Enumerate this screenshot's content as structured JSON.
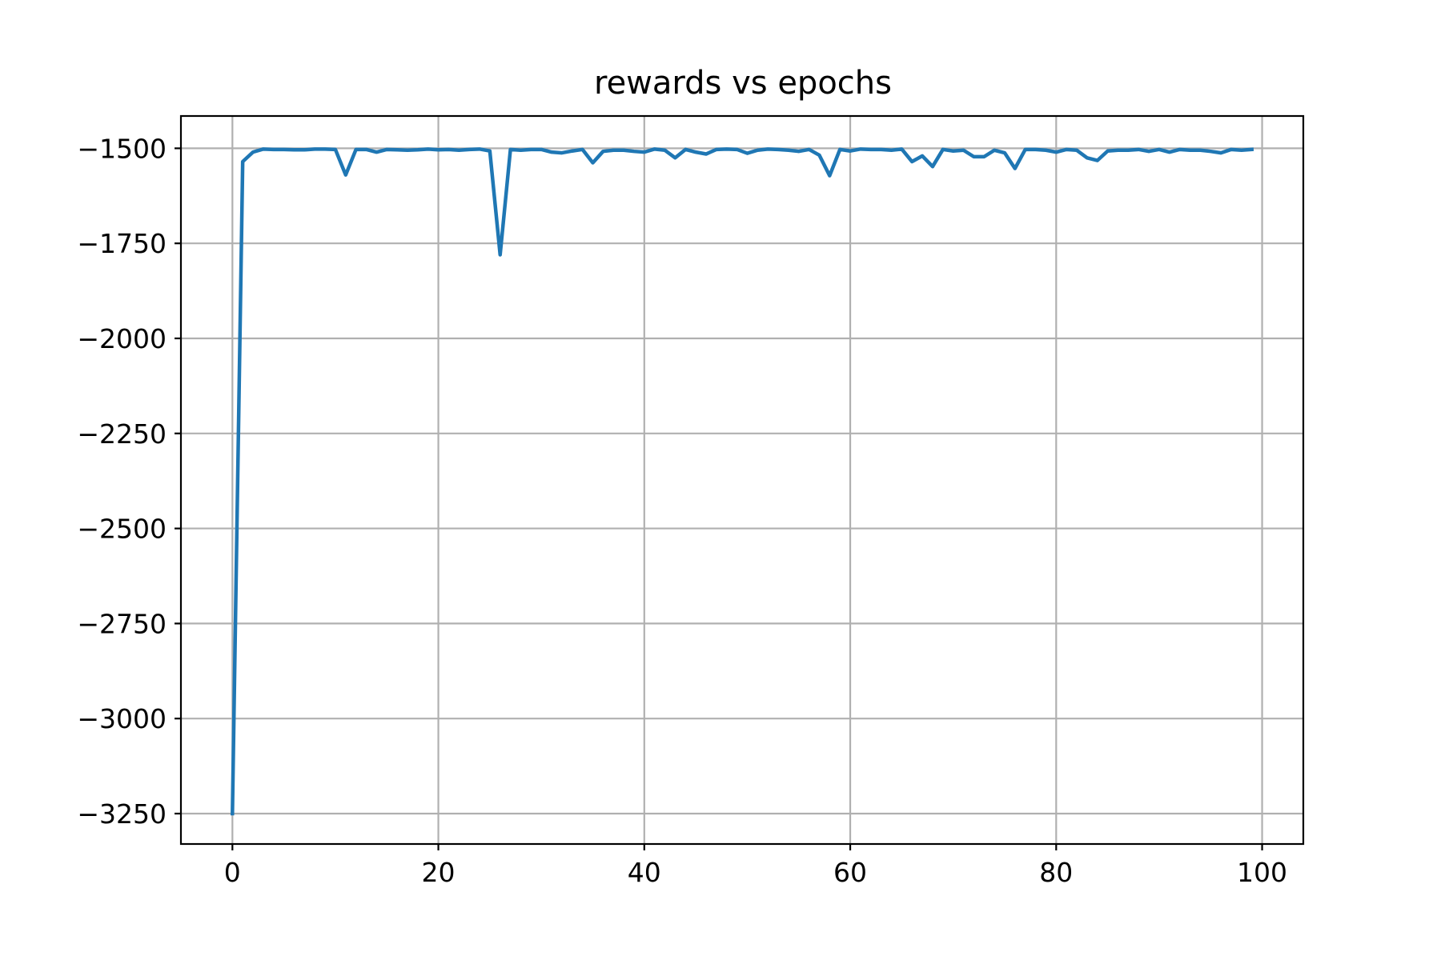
{
  "chart_data": {
    "type": "line",
    "title": "rewards vs epochs",
    "xlabel": "",
    "ylabel": "",
    "xlim": [
      -5,
      104
    ],
    "ylim": [
      -3330,
      -1415
    ],
    "xticks": [
      0,
      20,
      40,
      60,
      80,
      100
    ],
    "xtick_labels": [
      "0",
      "20",
      "40",
      "60",
      "80",
      "100"
    ],
    "yticks": [
      -1500,
      -1750,
      -2000,
      -2250,
      -2500,
      -2750,
      -3000,
      -3250
    ],
    "ytick_labels": [
      "−1500",
      "−1750",
      "−2000",
      "−2250",
      "−2500",
      "−2750",
      "−3000",
      "−3250"
    ],
    "grid": true,
    "legend": "none",
    "series": [
      {
        "color": "#1f77b4",
        "x": [
          0,
          1,
          2,
          3,
          4,
          5,
          6,
          7,
          8,
          9,
          10,
          11,
          12,
          13,
          14,
          15,
          16,
          17,
          18,
          19,
          20,
          21,
          22,
          23,
          24,
          25,
          26,
          27,
          28,
          29,
          30,
          31,
          32,
          33,
          34,
          35,
          36,
          37,
          38,
          39,
          40,
          41,
          42,
          43,
          44,
          45,
          46,
          47,
          48,
          49,
          50,
          51,
          52,
          53,
          54,
          55,
          56,
          57,
          58,
          59,
          60,
          61,
          62,
          63,
          64,
          65,
          66,
          67,
          68,
          69,
          70,
          71,
          72,
          73,
          74,
          75,
          76,
          77,
          78,
          79,
          80,
          81,
          82,
          83,
          84,
          85,
          86,
          87,
          88,
          89,
          90,
          91,
          92,
          93,
          94,
          95,
          96,
          97,
          98,
          99
        ],
        "values": [
          -3250,
          -1535,
          -1510,
          -1502,
          -1503,
          -1503,
          -1504,
          -1504,
          -1502,
          -1502,
          -1503,
          -1570,
          -1503,
          -1503,
          -1510,
          -1503,
          -1504,
          -1505,
          -1504,
          -1502,
          -1504,
          -1503,
          -1505,
          -1503,
          -1502,
          -1507,
          -1780,
          -1503,
          -1505,
          -1503,
          -1503,
          -1510,
          -1512,
          -1507,
          -1503,
          -1538,
          -1508,
          -1505,
          -1505,
          -1508,
          -1510,
          -1502,
          -1505,
          -1525,
          -1503,
          -1510,
          -1515,
          -1503,
          -1502,
          -1503,
          -1513,
          -1505,
          -1502,
          -1503,
          -1505,
          -1508,
          -1503,
          -1518,
          -1572,
          -1503,
          -1507,
          -1502,
          -1503,
          -1503,
          -1505,
          -1502,
          -1535,
          -1520,
          -1548,
          -1503,
          -1507,
          -1505,
          -1522,
          -1522,
          -1505,
          -1512,
          -1553,
          -1503,
          -1503,
          -1505,
          -1510,
          -1503,
          -1505,
          -1525,
          -1532,
          -1507,
          -1505,
          -1505,
          -1503,
          -1508,
          -1503,
          -1510,
          -1503,
          -1505,
          -1505,
          -1508,
          -1512,
          -1503,
          -1505,
          -1503
        ]
      }
    ]
  }
}
